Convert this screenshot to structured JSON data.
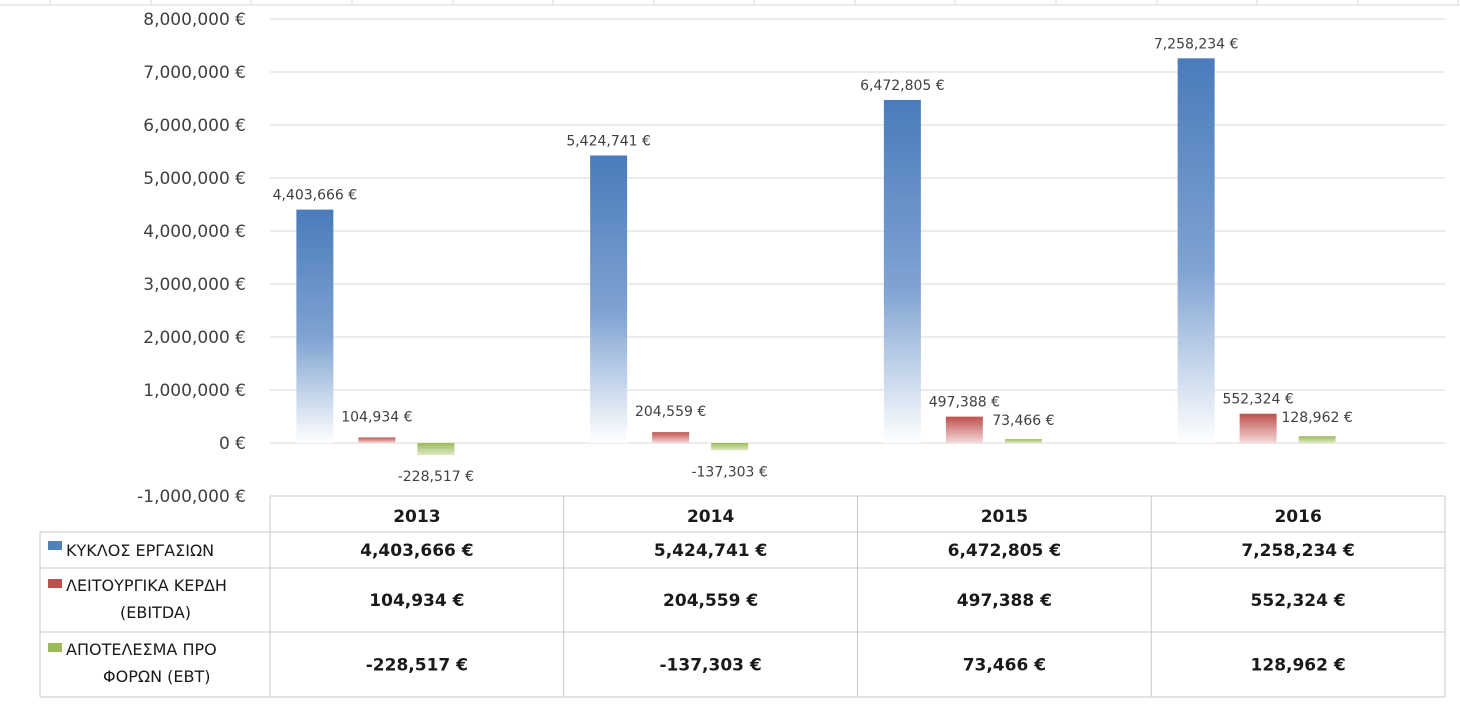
{
  "chart_data": {
    "type": "bar",
    "categories": [
      "2013",
      "2014",
      "2015",
      "2016"
    ],
    "series": [
      {
        "name": "ΚΥΚΛΟΣ ΕΡΓΑΣΙΩΝ",
        "values": [
          4403666,
          5424741,
          6472805,
          7258234
        ],
        "labels": [
          "4,403,666 €",
          "5,424,741 €",
          "6,472,805 €",
          "7,258,234 €"
        ],
        "color": "#4f81bd"
      },
      {
        "name": "ΛΕΙΤΟΥΡΓΙΚΑ ΚΕΡΔΗ (EBITDA)",
        "values": [
          104934,
          204559,
          497388,
          552324
        ],
        "labels": [
          "104,934 €",
          "204,559 €",
          "497,388 €",
          "552,324 €"
        ],
        "color": "#c0504d"
      },
      {
        "name": "ΑΠΟΤΕΛΕΣΜΑ ΠΡΟ ΦΟΡΩΝ (EBT)",
        "values": [
          -228517,
          -137303,
          73466,
          128962
        ],
        "labels": [
          "-228,517 €",
          "-137,303 €",
          "73,466 €",
          "128,962 €"
        ],
        "color": "#9bbb59"
      }
    ],
    "yticks": [
      "-1,000,000 €",
      "0 €",
      "1,000,000 €",
      "2,000,000 €",
      "3,000,000 €",
      "4,000,000 €",
      "5,000,000 €",
      "6,000,000 €",
      "7,000,000 €",
      "8,000,000 €"
    ],
    "ylim": [
      -1000000,
      8000000
    ],
    "grid": true,
    "legend": "data-table"
  }
}
